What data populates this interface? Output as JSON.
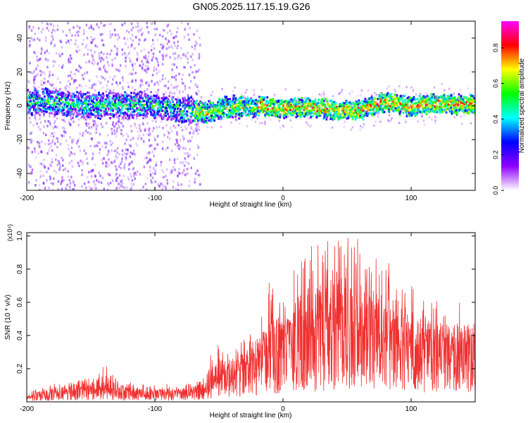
{
  "title": "GN05.2025.117.15.19.G26",
  "chart_data": [
    {
      "type": "heatmap",
      "xlabel": "Height of straight line (km)",
      "ylabel": "Frequency (Hz)",
      "xlim": [
        -200,
        150
      ],
      "ylim": [
        -50,
        50
      ],
      "xticks": [
        -200,
        -100,
        0,
        100
      ],
      "xtick_labels": [
        "-200",
        "-100",
        "0",
        "100"
      ],
      "yticks": [
        -40,
        -20,
        0,
        20,
        40
      ],
      "ytick_labels": [
        "-40",
        "-20",
        "0",
        "20",
        "40"
      ],
      "colorbar": {
        "label": "Normalized spectral amplitude",
        "range": [
          0,
          0.95
        ],
        "ticks": [
          0,
          0.2,
          0.4,
          0.6,
          0.8
        ],
        "tick_labels": [
          "0.0",
          "0.2",
          "0.4",
          "0.6",
          "0.8"
        ],
        "colormap": [
          "#ffffff",
          "#8f00ff",
          "#0000ff",
          "#00ffff",
          "#00ff00",
          "#ffff00",
          "#ff0000",
          "#ff00ff"
        ]
      },
      "ridge": {
        "x": [
          -200,
          -180,
          -160,
          -140,
          -120,
          -100,
          -80,
          -60,
          -40,
          -20,
          0,
          20,
          40,
          60,
          80,
          100,
          120,
          150
        ],
        "frequency": [
          3,
          3,
          1,
          1,
          1,
          1,
          -2,
          -3,
          0,
          0,
          -1,
          0,
          -2,
          -2,
          3,
          0,
          2,
          1
        ]
      },
      "grid": false
    },
    {
      "type": "line",
      "xlabel": "Height of straight line (km)",
      "ylabel": "SNR (10 * v/v)",
      "y_multiplier": "(x10⁴)",
      "xlim": [
        -200,
        150
      ],
      "ylim": [
        0,
        1.02
      ],
      "xticks": [
        -200,
        -100,
        0,
        100
      ],
      "xtick_labels": [
        "-200",
        "-100",
        "0",
        "100"
      ],
      "yticks": [
        0.2,
        0.4,
        0.6,
        0.8,
        1.0
      ],
      "ytick_labels": [
        "0.2",
        "0.4",
        "0.6",
        "0.8",
        "1.0"
      ],
      "series": [
        {
          "color": "#f03030",
          "x": [
            -200,
            -190,
            -180,
            -170,
            -160,
            -150,
            -140,
            -130,
            -120,
            -110,
            -100,
            -90,
            -80,
            -70,
            -60,
            -50,
            -40,
            -30,
            -20,
            -10,
            0,
            10,
            20,
            30,
            40,
            50,
            60,
            70,
            80,
            90,
            100,
            110,
            120,
            130,
            140,
            150
          ],
          "mean": [
            0.02,
            0.04,
            0.05,
            0.06,
            0.07,
            0.07,
            0.08,
            0.07,
            0.06,
            0.05,
            0.05,
            0.05,
            0.05,
            0.06,
            0.1,
            0.16,
            0.18,
            0.2,
            0.24,
            0.3,
            0.35,
            0.38,
            0.4,
            0.42,
            0.44,
            0.45,
            0.42,
            0.42,
            0.4,
            0.38,
            0.36,
            0.34,
            0.33,
            0.32,
            0.32,
            0.32
          ],
          "max": [
            0.05,
            0.09,
            0.11,
            0.12,
            0.13,
            0.15,
            0.24,
            0.14,
            0.12,
            0.11,
            0.1,
            0.11,
            0.11,
            0.13,
            0.24,
            0.36,
            0.34,
            0.38,
            0.45,
            0.75,
            0.6,
            0.88,
            0.95,
            0.96,
            1.0,
            1.0,
            0.98,
            0.9,
            0.85,
            0.8,
            0.7,
            0.66,
            0.62,
            0.6,
            0.6,
            0.6
          ]
        }
      ],
      "grid": false
    }
  ]
}
